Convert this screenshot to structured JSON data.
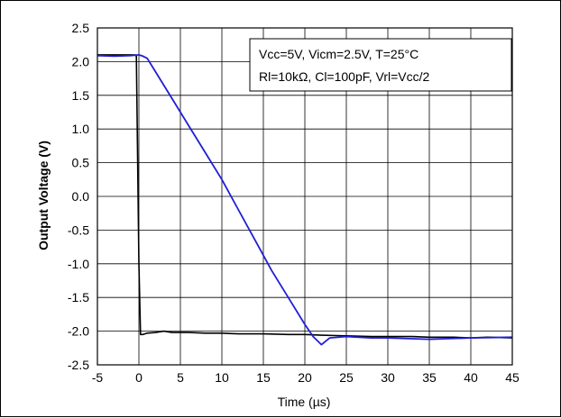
{
  "chart_data": {
    "type": "line",
    "title": "",
    "xlabel": "Time (µs)",
    "ylabel": "Output Voltage (V)",
    "xlim": [
      -5,
      45
    ],
    "ylim": [
      -2.5,
      2.5
    ],
    "xticks": [
      -5,
      0,
      5,
      10,
      15,
      20,
      25,
      30,
      35,
      40,
      45
    ],
    "yticks": [
      2.5,
      2.0,
      1.5,
      1.0,
      0.5,
      0.0,
      -0.5,
      -1.0,
      -1.5,
      -2.0,
      -2.5
    ],
    "xtick_labels": [
      "-5",
      "0",
      "5",
      "10",
      "15",
      "20",
      "25",
      "30",
      "35",
      "40",
      "45"
    ],
    "ytick_labels": [
      "2.5",
      "2.0",
      "1.5",
      "1.0",
      "0.5",
      "0.0",
      "-0.5",
      "-1.0",
      "-1.5",
      "-2.0",
      "-2.5"
    ],
    "grid": true,
    "annotation": {
      "line1": "Vcc=5V, Vicm=2.5V, T=25°C",
      "line2": "Rl=10kΩ, Cl=100pF, Vrl=Vcc/2"
    },
    "series": [
      {
        "color": "#000000",
        "x": [
          -5,
          -3,
          -1,
          -0.5,
          -0.3,
          0,
          0.2,
          0.5,
          1,
          2,
          3,
          4,
          6,
          8,
          10,
          12,
          15,
          18,
          20,
          22,
          25,
          28,
          30,
          33,
          35,
          38,
          40,
          42,
          45
        ],
        "y": [
          2.1,
          2.1,
          2.1,
          2.1,
          2.08,
          -1.0,
          -2.05,
          -2.05,
          -2.03,
          -2.02,
          -2.0,
          -2.02,
          -2.02,
          -2.03,
          -2.03,
          -2.04,
          -2.04,
          -2.05,
          -2.05,
          -2.06,
          -2.07,
          -2.08,
          -2.08,
          -2.08,
          -2.09,
          -2.09,
          -2.1,
          -2.09,
          -2.1
        ]
      },
      {
        "color": "#1f1fd6",
        "x": [
          -5,
          -3,
          -1,
          0,
          0.5,
          1,
          2,
          4,
          6,
          8,
          10,
          12,
          14,
          16,
          18,
          20,
          21,
          22,
          22.5,
          23,
          25,
          28,
          30,
          35,
          40,
          45
        ],
        "y": [
          2.09,
          2.08,
          2.09,
          2.1,
          2.08,
          2.05,
          1.85,
          1.45,
          1.05,
          0.65,
          0.25,
          -0.2,
          -0.65,
          -1.1,
          -1.5,
          -1.9,
          -2.08,
          -2.2,
          -2.15,
          -2.1,
          -2.08,
          -2.1,
          -2.1,
          -2.12,
          -2.1,
          -2.09
        ]
      }
    ]
  }
}
